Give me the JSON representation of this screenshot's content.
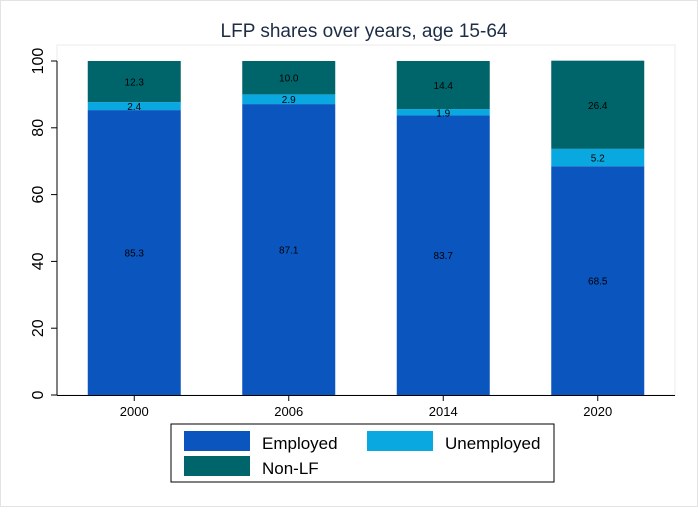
{
  "chart_data": {
    "type": "bar",
    "stacked": true,
    "title": "LFP shares over years, age 15-64",
    "xlabel": "",
    "ylabel": "",
    "ylim": [
      0,
      100
    ],
    "yticks": [
      0,
      20,
      40,
      60,
      80,
      100
    ],
    "categories": [
      "2000",
      "2006",
      "2014",
      "2020"
    ],
    "series": [
      {
        "name": "Employed",
        "color": "#0b55bf",
        "values": [
          85.3,
          87.1,
          83.7,
          68.5
        ],
        "labels": [
          "85.3",
          "87.1",
          "83.7",
          "68.5"
        ]
      },
      {
        "name": "Unemployed",
        "color": "#0aa8e0",
        "values": [
          2.4,
          2.9,
          1.9,
          5.2
        ],
        "labels": [
          "2.4",
          "2.9",
          "1.9",
          "5.2"
        ]
      },
      {
        "name": "Non-LF",
        "color": "#00656a",
        "values": [
          12.3,
          10.0,
          14.4,
          26.4
        ],
        "labels": [
          "12.3",
          "10.0",
          "14.4",
          "26.4"
        ]
      }
    ],
    "legend": {
      "position": "bottom"
    }
  }
}
